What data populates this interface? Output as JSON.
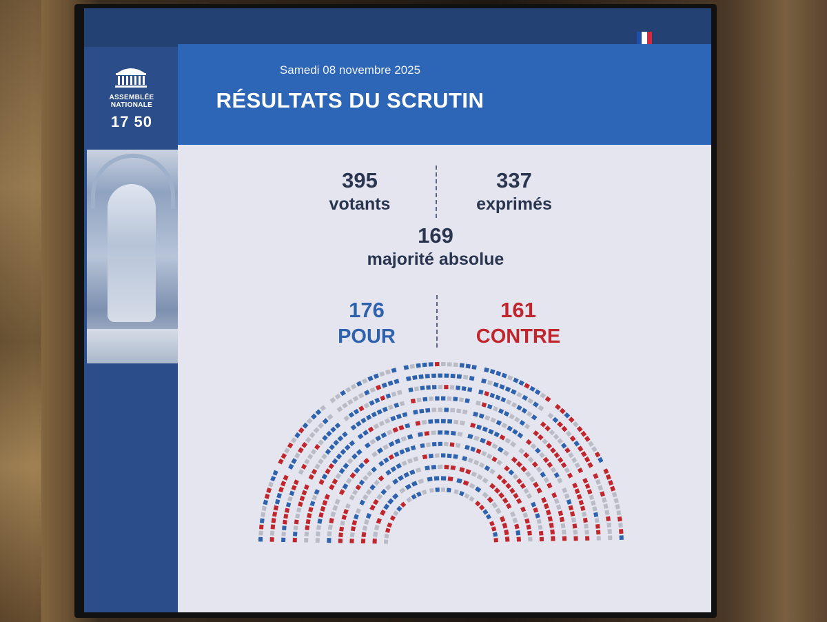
{
  "header": {
    "date": "Samedi 08 novembre 2025",
    "title": "RÉSULTATS DU SCRUTIN"
  },
  "logo": {
    "line1": "ASSEMBLÉE",
    "line2": "NATIONALE",
    "year": "17 50"
  },
  "stats": {
    "votants": {
      "value": "395",
      "label": "votants"
    },
    "exprimes": {
      "value": "337",
      "label": "exprimés"
    },
    "majorite": {
      "value": "169",
      "label": "majorité absolue"
    },
    "pour": {
      "value": "176",
      "label": "POUR"
    },
    "contre": {
      "value": "161",
      "label": "CONTRE"
    }
  },
  "colors": {
    "pour": "#2f62ad",
    "contre": "#c0262d",
    "absent": "#b9bcc6",
    "flag_blue": "#1f4fa8",
    "flag_white": "#ffffff",
    "flag_red": "#d6283a"
  },
  "hemicycle": {
    "rows": 12,
    "pour": 176,
    "contre": 161
  }
}
